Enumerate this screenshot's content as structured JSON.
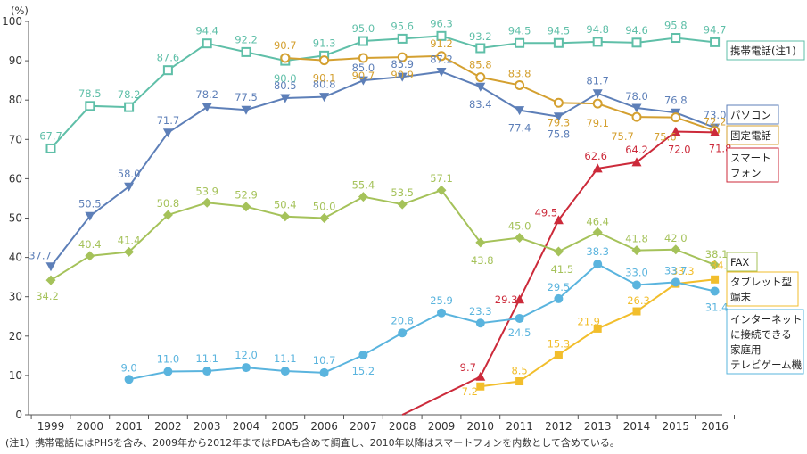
{
  "colors": {
    "携帯電話": "#5fbfa8",
    "パソコン": "#5d7fb8",
    "固定電話": "#d4a030",
    "スマートフォン": "#cc2a3a",
    "FAX": "#a5c25a",
    "タブレット型端末": "#f2be2c",
    "ゲーム機": "#5ab4de"
  },
  "chart_data": {
    "type": "line",
    "unit_label": "(%)",
    "x": [
      "1999",
      "2000",
      "2001",
      "2002",
      "2003",
      "2004",
      "2005",
      "2006",
      "2007",
      "2008",
      "2009",
      "2010",
      "2011",
      "2012",
      "2013",
      "2014",
      "2015",
      "2016"
    ],
    "ylim": [
      0,
      100
    ],
    "yticks": [
      0,
      10,
      20,
      30,
      40,
      50,
      60,
      70,
      80,
      90,
      100
    ],
    "grid": false,
    "legend": "right",
    "series": [
      {
        "key": "携帯電話",
        "name": "携帯電話(注1)",
        "marker": "square-open",
        "values": [
          67.7,
          78.5,
          78.2,
          87.6,
          94.4,
          92.2,
          90.0,
          91.3,
          95.0,
          95.6,
          96.3,
          93.2,
          94.5,
          94.5,
          94.8,
          94.6,
          95.8,
          94.7
        ]
      },
      {
        "key": "パソコン",
        "name": "パソコン",
        "marker": "tri-down",
        "values": [
          37.7,
          50.5,
          58.0,
          71.7,
          78.2,
          77.5,
          80.5,
          80.8,
          85.0,
          85.9,
          87.2,
          83.4,
          77.4,
          75.8,
          81.7,
          78.0,
          76.8,
          73.0
        ]
      },
      {
        "key": "固定電話",
        "name": "固定電話",
        "marker": "circle-open",
        "values": [
          null,
          null,
          null,
          null,
          null,
          null,
          90.7,
          90.1,
          90.7,
          90.9,
          91.2,
          85.8,
          83.8,
          79.3,
          79.1,
          75.7,
          75.6,
          72.2
        ]
      },
      {
        "key": "スマートフォン",
        "name": "スマートフォン",
        "marker": "tri-up",
        "values": [
          null,
          null,
          null,
          null,
          null,
          null,
          null,
          null,
          null,
          null,
          null,
          9.7,
          29.3,
          49.5,
          62.6,
          64.2,
          72.0,
          71.8
        ]
      },
      {
        "key": "FAX",
        "name": "FAX",
        "marker": "diamond",
        "values": [
          34.2,
          40.4,
          41.4,
          50.8,
          53.9,
          52.9,
          50.4,
          50.0,
          55.4,
          53.5,
          57.1,
          43.8,
          45.0,
          41.5,
          46.4,
          41.8,
          42.0,
          38.1
        ]
      },
      {
        "key": "タブレット型端末",
        "name": "タブレット型端末",
        "marker": "square",
        "values": [
          null,
          null,
          null,
          null,
          null,
          null,
          null,
          null,
          null,
          null,
          null,
          7.2,
          8.5,
          15.3,
          21.9,
          26.3,
          33.3,
          34.4
        ]
      },
      {
        "key": "ゲーム機",
        "name": "インターネットに接続できる家庭用テレビゲーム機",
        "marker": "circle",
        "values": [
          null,
          null,
          9.0,
          11.0,
          11.1,
          12.0,
          11.1,
          10.7,
          15.2,
          20.8,
          25.9,
          23.3,
          24.5,
          29.5,
          38.3,
          33.0,
          33.7,
          31.4
        ]
      }
    ],
    "legend_labels": {
      "携帯電話": [
        "携帯電話(注1)"
      ],
      "パソコン": [
        "パソコン"
      ],
      "固定電話": [
        "固定電話"
      ],
      "スマートフォン": [
        "スマート",
        "フォン"
      ],
      "FAX": [
        "FAX"
      ],
      "タブレット型端末": [
        "タブレット型",
        "端末"
      ],
      "ゲーム機": [
        "インターネット",
        "に接続できる",
        "家庭用",
        "テレビゲーム機"
      ]
    }
  },
  "note": "(注1）携帯電話にはPHSを含み、2009年から2012年まではPDAも含めて調査し、2010年以降はスマートフォンを内数として含めている。"
}
